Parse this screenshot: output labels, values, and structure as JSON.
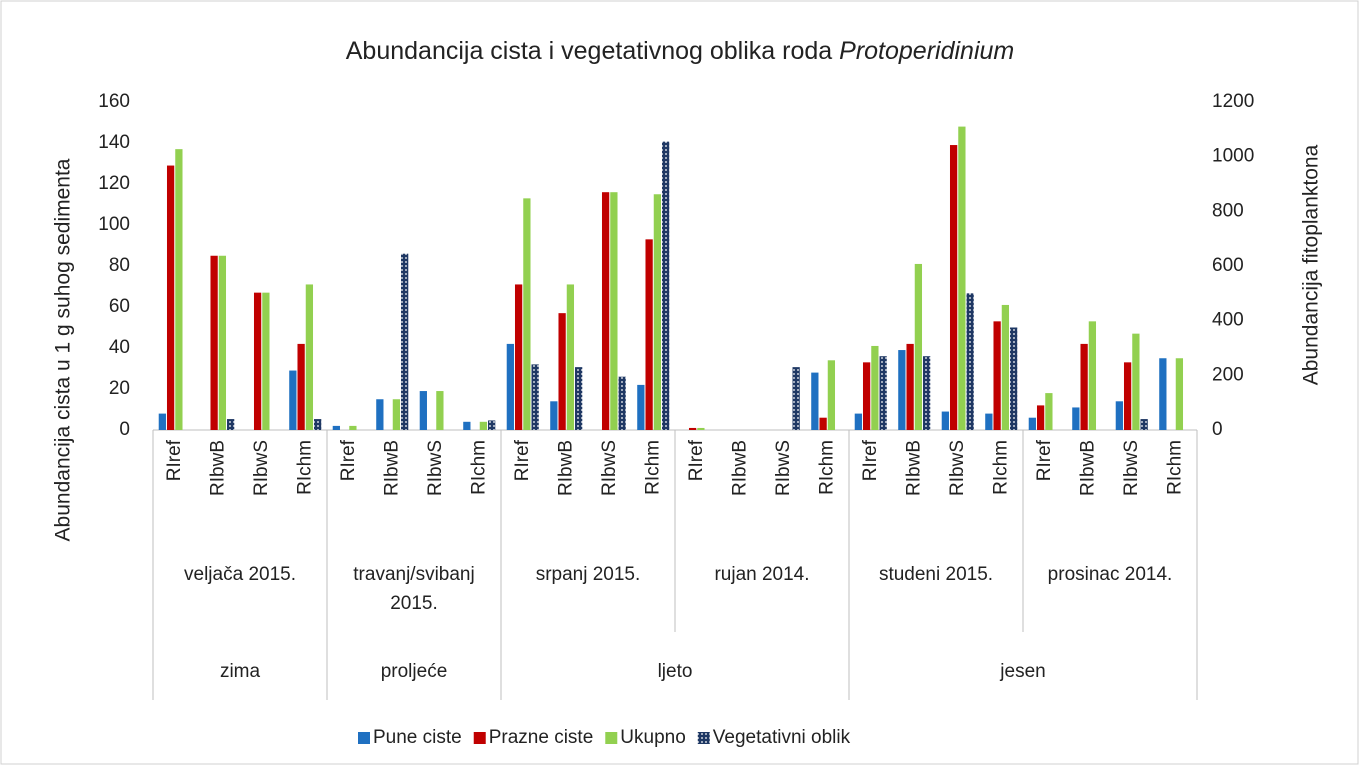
{
  "chart_data": {
    "type": "bar",
    "title": {
      "text": "Abundancija cista i vegetativnog oblika roda",
      "italic": "Protoperidinium"
    },
    "ylabel": "Abundancija cista u 1 g suhog sedimenta",
    "y2label": "Abundancija fitoplanktona",
    "seasons": [
      {
        "label": "zima",
        "months": [
          {
            "label": "veljača 2015.",
            "categories": [
              "RIref",
              "RIbwB",
              "RIbwS",
              "RIchm"
            ]
          }
        ]
      },
      {
        "label": "proljeće",
        "months": [
          {
            "label": "travanj/svibanj 2015.",
            "categories": [
              "RIref",
              "RIbwB",
              "RIbwS",
              "RIchm"
            ]
          }
        ]
      },
      {
        "label": "ljeto",
        "months": [
          {
            "label": "srpanj 2015.",
            "categories": [
              "RIref",
              "RIbwB",
              "RIbwS",
              "RIchm"
            ]
          },
          {
            "label": "rujan 2014.",
            "categories": [
              "RIref",
              "RIbwB",
              "RIbwS",
              "RIchm"
            ]
          }
        ]
      },
      {
        "label": "jesen",
        "months": [
          {
            "label": "studeni 2015.",
            "categories": [
              "RIref",
              "RIbwB",
              "RIbwS",
              "RIchm"
            ]
          },
          {
            "label": "prosinac 2014.",
            "categories": [
              "RIref",
              "RIbwB",
              "RIbwS",
              "RIchm"
            ]
          }
        ]
      }
    ],
    "series": [
      {
        "name": "Pune ciste",
        "color": "#1f70c1",
        "values": [
          8,
          0,
          0,
          29,
          2,
          15,
          19,
          4,
          42,
          14,
          0,
          22,
          0,
          0,
          0,
          28,
          8,
          39,
          9,
          8,
          6,
          11,
          14,
          35
        ]
      },
      {
        "name": "Prazne ciste",
        "color": "#c00000",
        "values": [
          129,
          85,
          67,
          42,
          0,
          0,
          0,
          0,
          71,
          57,
          116,
          93,
          1,
          0,
          0,
          6,
          33,
          42,
          139,
          53,
          12,
          42,
          33,
          0
        ]
      },
      {
        "name": "Ukupno",
        "color": "#92d050",
        "values": [
          137,
          85,
          67,
          71,
          2,
          15,
          19,
          4,
          113,
          71,
          116,
          115,
          1,
          0,
          0,
          34,
          41,
          81,
          148,
          61,
          18,
          53,
          47,
          35
        ]
      },
      {
        "name": "Vegetativni oblik",
        "color": "#1f3864",
        "axis": "y2",
        "values": [
          0,
          40,
          0,
          40,
          0,
          645,
          0,
          35,
          240,
          230,
          195,
          1055,
          0,
          0,
          230,
          0,
          270,
          270,
          500,
          375,
          0,
          0,
          40,
          0
        ]
      }
    ],
    "ylim": [
      0,
      160
    ],
    "yticks": [
      0,
      20,
      40,
      60,
      80,
      100,
      120,
      140,
      160
    ],
    "y2lim": [
      0,
      1200
    ],
    "y2ticks": [
      0,
      200,
      400,
      600,
      800,
      1000,
      1200
    ],
    "legend": "bottom"
  }
}
